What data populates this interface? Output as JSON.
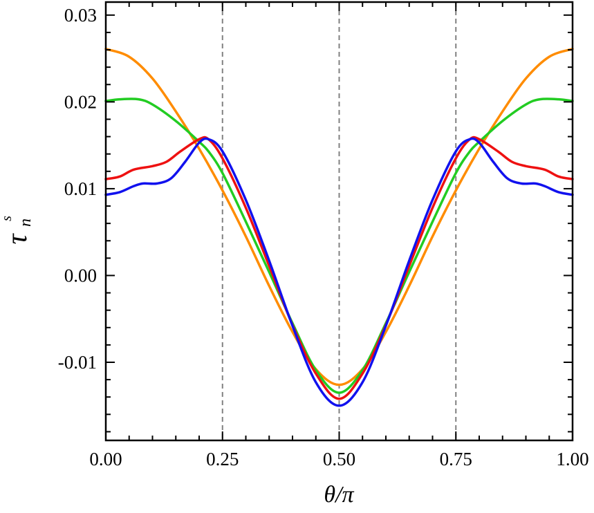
{
  "chart_data": {
    "type": "line",
    "xlabel": "θ/π",
    "ylabel_main": "τ",
    "ylabel_sub": "n",
    "ylabel_sup": "s",
    "xlim": [
      0,
      1
    ],
    "ylim": [
      -0.019,
      0.0315
    ],
    "x_ticks": [
      0,
      0.25,
      0.5,
      0.75,
      1
    ],
    "x_tick_labels": [
      "0.00",
      "0.25",
      "0.50",
      "0.75",
      "1.00"
    ],
    "y_ticks": [
      -0.01,
      0,
      0.01,
      0.02,
      0.03
    ],
    "y_tick_labels": [
      "-0.01",
      "0.00",
      "0.01",
      "0.02",
      "0.03"
    ],
    "vlines": [
      0.25,
      0.5,
      0.75
    ],
    "grid": false,
    "series": [
      {
        "color": "#ff8c00",
        "x": [
          0,
          0.05,
          0.1,
          0.15,
          0.2,
          0.25,
          0.3,
          0.35,
          0.4,
          0.45,
          0.5
        ],
        "y": [
          0.0261,
          0.0252,
          0.0227,
          0.0189,
          0.0146,
          0.0098,
          0.0045,
          -0.0012,
          -0.0065,
          -0.0108,
          -0.0126
        ]
      },
      {
        "color": "#22cc22",
        "x": [
          0,
          0.03,
          0.07,
          0.1,
          0.15,
          0.2,
          0.22,
          0.25,
          0.3,
          0.35,
          0.4,
          0.45,
          0.5
        ],
        "y": [
          0.0201,
          0.0203,
          0.0203,
          0.0197,
          0.0178,
          0.0154,
          0.0143,
          0.0118,
          0.0062,
          0.0004,
          -0.0055,
          -0.0109,
          -0.0135
        ]
      },
      {
        "color": "#ee1111",
        "x": [
          0,
          0.03,
          0.06,
          0.1,
          0.13,
          0.16,
          0.2,
          0.22,
          0.25,
          0.3,
          0.35,
          0.4,
          0.45,
          0.5
        ],
        "y": [
          0.0111,
          0.0114,
          0.0122,
          0.0126,
          0.0131,
          0.0143,
          0.0157,
          0.0157,
          0.0135,
          0.0078,
          0.0011,
          -0.0057,
          -0.0113,
          -0.0142
        ]
      },
      {
        "color": "#1111ee",
        "x": [
          0,
          0.03,
          0.06,
          0.08,
          0.11,
          0.14,
          0.17,
          0.2,
          0.22,
          0.25,
          0.3,
          0.35,
          0.4,
          0.45,
          0.5
        ],
        "y": [
          0.0093,
          0.0096,
          0.0103,
          0.0106,
          0.0106,
          0.0112,
          0.0131,
          0.0153,
          0.0157,
          0.0143,
          0.0087,
          0.0017,
          -0.0058,
          -0.0123,
          -0.015
        ]
      }
    ]
  }
}
